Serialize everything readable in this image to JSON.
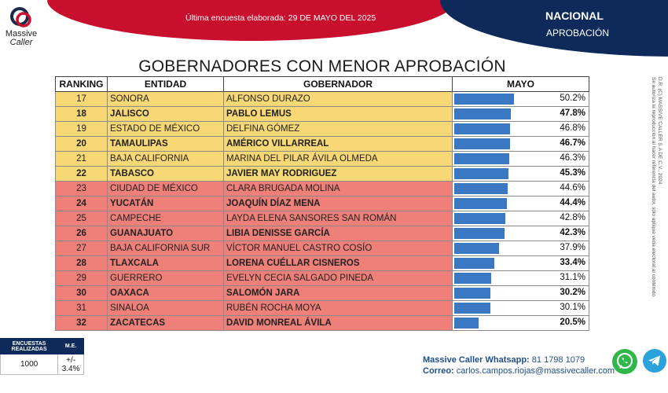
{
  "header": {
    "last_survey": "Última encuesta elaborada: 29 DE MAYO DEL 2025",
    "scope": "NACIONAL",
    "topic": "APROBACIÓN"
  },
  "logo": {
    "line1": "Massive",
    "line2": "Caller"
  },
  "title": "GOBERNADORES CON MENOR APROBACIÓN",
  "table": {
    "headers": [
      "RANKING",
      "ENTIDAD",
      "GOBERNADOR",
      "MAYO"
    ],
    "rows": [
      {
        "rank": "17",
        "entity": "SONORA",
        "governor": "ALFONSO DURAZO",
        "value": 50.2,
        "label": "50.2%"
      },
      {
        "rank": "18",
        "entity": "JALISCO",
        "governor": "PABLO LEMUS",
        "value": 47.8,
        "label": "47.8%"
      },
      {
        "rank": "19",
        "entity": "ESTADO DE MÉXICO",
        "governor": "DELFINA GÓMEZ",
        "value": 46.8,
        "label": "46.8%"
      },
      {
        "rank": "20",
        "entity": "TAMAULIPAS",
        "governor": "AMÉRICO VILLARREAL",
        "value": 46.7,
        "label": "46.7%"
      },
      {
        "rank": "21",
        "entity": "BAJA CALIFORNIA",
        "governor": "MARINA DEL PILAR ÁVILA OLMEDA",
        "value": 46.3,
        "label": "46.3%"
      },
      {
        "rank": "22",
        "entity": "TABASCO",
        "governor": "JAVIER MAY RODRIGUEZ",
        "value": 45.3,
        "label": "45.3%"
      },
      {
        "rank": "23",
        "entity": "CIUDAD DE MÉXICO",
        "governor": "CLARA BRUGADA MOLINA",
        "value": 44.6,
        "label": "44.6%"
      },
      {
        "rank": "24",
        "entity": "YUCATÁN",
        "governor": "JOAQUÍN DÍAZ MENA",
        "value": 44.4,
        "label": "44.4%"
      },
      {
        "rank": "25",
        "entity": "CAMPECHE",
        "governor": "LAYDA ELENA SANSORES SAN ROMÁN",
        "value": 42.8,
        "label": "42.8%"
      },
      {
        "rank": "26",
        "entity": "GUANAJUATO",
        "governor": "LIBIA DENISSE GARCÍA",
        "value": 42.3,
        "label": "42.3%"
      },
      {
        "rank": "27",
        "entity": "BAJA CALIFORNIA SUR",
        "governor": "VÍCTOR MANUEL CASTRO COSÍO",
        "value": 37.9,
        "label": "37.9%"
      },
      {
        "rank": "28",
        "entity": "TLAXCALA",
        "governor": "LORENA CUÉLLAR CISNEROS",
        "value": 33.4,
        "label": "33.4%"
      },
      {
        "rank": "29",
        "entity": "GUERRERO",
        "governor": "EVELYN CECIA SALGADO PINEDA",
        "value": 31.1,
        "label": "31.1%"
      },
      {
        "rank": "30",
        "entity": "OAXACA",
        "governor": "SALOMÓN JARA",
        "value": 30.2,
        "label": "30.2%"
      },
      {
        "rank": "31",
        "entity": "SINALOA",
        "governor": "RUBÉN ROCHA MOYA",
        "value": 30.1,
        "label": "30.1%"
      },
      {
        "rank": "32",
        "entity": "ZACATECAS",
        "governor": "DAVID MONREAL ÁVILA",
        "value": 20.5,
        "label": "20.5%"
      }
    ]
  },
  "stats": {
    "header_surveys": "ENCUESTAS REALIZADAS",
    "header_me": "M.E.",
    "surveys": "1000",
    "me": "+/- 3.4%"
  },
  "contact": {
    "whatsapp_label": "Massive Caller Whatsapp:",
    "whatsapp_number": "81 1798 1079",
    "email_label": "Correo:",
    "email": "carlos.campos.riojas@massivecaller.com"
  },
  "legal": {
    "line1": "D.R. (C) MASSIVE CALLER S.A DE C.V., 2024",
    "line2": "Se autoriza la reproducción al hacer referencia del autor, sólo aplique veda electoral al contenido."
  },
  "colors": {
    "yellow": "#f8d775",
    "red": "#ee7f79",
    "bar": "#3a78c2",
    "navy": "#0e2a5a",
    "crimson": "#c8102e"
  }
}
